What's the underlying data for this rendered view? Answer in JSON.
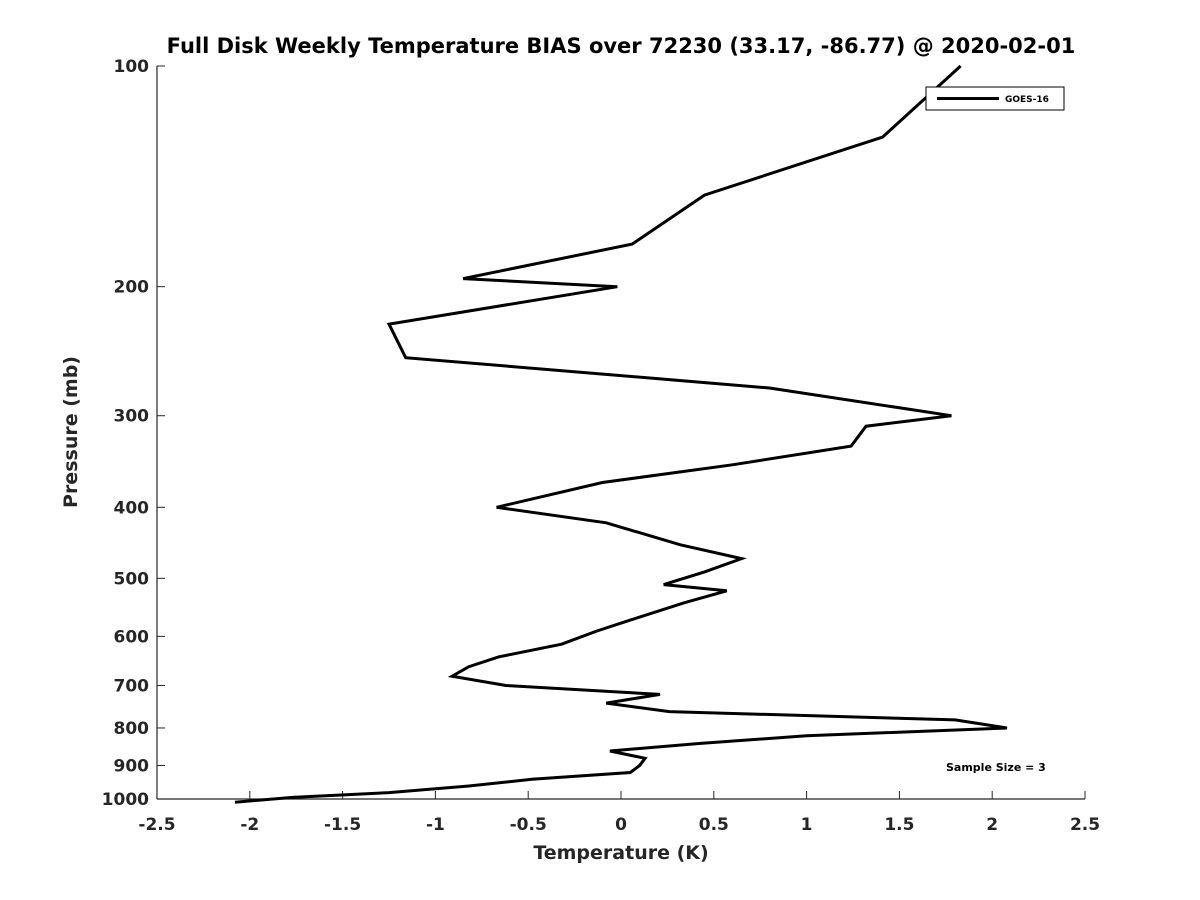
{
  "chart_data": {
    "type": "line",
    "title": "Full Disk Weekly Temperature BIAS over 72230 (33.17, -86.77) @ 2020-02-01",
    "xlabel": "Temperature (K)",
    "ylabel": "Pressure (mb)",
    "xlim": [
      -2.5,
      2.5
    ],
    "ylim": [
      100,
      1000
    ],
    "y_scale": "log",
    "y_reversed": true,
    "grid": false,
    "legend_position": "top-right",
    "x_ticks": [
      -2.5,
      -2,
      -1.5,
      -1,
      -0.5,
      0,
      0.5,
      1,
      1.5,
      2,
      2.5
    ],
    "x_tick_labels": [
      "-2.5",
      "-2",
      "-1.5",
      "-1",
      "-0.5",
      "0",
      "0.5",
      "1",
      "1.5",
      "2",
      "2.5"
    ],
    "y_ticks": [
      100,
      200,
      300,
      400,
      500,
      600,
      700,
      800,
      900,
      1000
    ],
    "y_tick_labels": [
      "100",
      "200",
      "300",
      "400",
      "500",
      "600",
      "700",
      "800",
      "900",
      "1000"
    ],
    "annotation": "Sample Size = 3",
    "series": [
      {
        "name": "GOES-16",
        "color": "#000000",
        "points": [
          {
            "x": 1.83,
            "y": 100
          },
          {
            "x": 1.41,
            "y": 125
          },
          {
            "x": 0.45,
            "y": 150
          },
          {
            "x": 0.06,
            "y": 175
          },
          {
            "x": -0.85,
            "y": 195
          },
          {
            "x": -0.02,
            "y": 200
          },
          {
            "x": -1.25,
            "y": 225
          },
          {
            "x": -1.16,
            "y": 250
          },
          {
            "x": 0.8,
            "y": 275
          },
          {
            "x": 1.78,
            "y": 300
          },
          {
            "x": 1.32,
            "y": 310
          },
          {
            "x": 1.24,
            "y": 330
          },
          {
            "x": 0.6,
            "y": 350
          },
          {
            "x": -0.1,
            "y": 370
          },
          {
            "x": -0.67,
            "y": 400
          },
          {
            "x": -0.08,
            "y": 420
          },
          {
            "x": 0.32,
            "y": 450
          },
          {
            "x": 0.65,
            "y": 470
          },
          {
            "x": 0.45,
            "y": 490
          },
          {
            "x": 0.23,
            "y": 510
          },
          {
            "x": 0.57,
            "y": 520
          },
          {
            "x": 0.34,
            "y": 540
          },
          {
            "x": 0.05,
            "y": 570
          },
          {
            "x": -0.13,
            "y": 590
          },
          {
            "x": -0.32,
            "y": 615
          },
          {
            "x": -0.66,
            "y": 640
          },
          {
            "x": -0.82,
            "y": 660
          },
          {
            "x": -0.91,
            "y": 680
          },
          {
            "x": -0.62,
            "y": 700
          },
          {
            "x": 0.21,
            "y": 720
          },
          {
            "x": -0.08,
            "y": 740
          },
          {
            "x": 0.26,
            "y": 760
          },
          {
            "x": 1.8,
            "y": 780
          },
          {
            "x": 2.08,
            "y": 800
          },
          {
            "x": 1.0,
            "y": 820
          },
          {
            "x": 0.42,
            "y": 840
          },
          {
            "x": -0.06,
            "y": 860
          },
          {
            "x": 0.13,
            "y": 880
          },
          {
            "x": 0.1,
            "y": 900
          },
          {
            "x": 0.05,
            "y": 920
          },
          {
            "x": -0.48,
            "y": 940
          },
          {
            "x": -0.82,
            "y": 960
          },
          {
            "x": -1.25,
            "y": 980
          },
          {
            "x": -1.77,
            "y": 995
          },
          {
            "x": -2.08,
            "y": 1010
          }
        ]
      }
    ]
  }
}
